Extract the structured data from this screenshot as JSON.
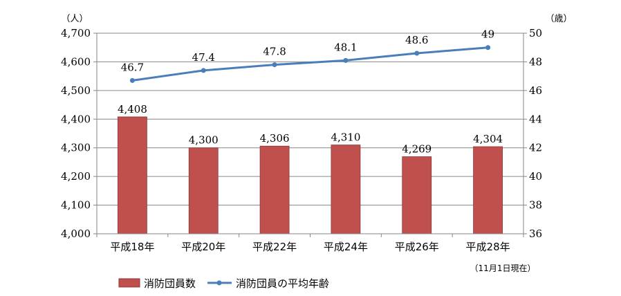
{
  "chart_data": {
    "type": "bar+line",
    "categories": [
      "平成18年",
      "平成20年",
      "平成22年",
      "平成24年",
      "平成26年",
      "平成28年"
    ],
    "series": [
      {
        "name": "消防団員数",
        "type": "bar",
        "axis": "left",
        "values": [
          4408,
          4300,
          4306,
          4310,
          4269,
          4304
        ],
        "labels": [
          "4,408",
          "4,300",
          "4,306",
          "4,310",
          "4,269",
          "4,304"
        ],
        "color": "#c0504d"
      },
      {
        "name": "消防団員の平均年齢",
        "type": "line",
        "axis": "right",
        "values": [
          46.7,
          47.4,
          47.8,
          48.1,
          48.6,
          49
        ],
        "labels": [
          "46.7",
          "47.4",
          "47.8",
          "48.1",
          "48.6",
          "49"
        ],
        "color": "#4a7ebb"
      }
    ],
    "y_left": {
      "unit": "（人）",
      "ylim": [
        4000,
        4700
      ],
      "ticks": [
        4000,
        4100,
        4200,
        4300,
        4400,
        4500,
        4600,
        4700
      ],
      "tick_labels": [
        "4,000",
        "4,100",
        "4,200",
        "4,300",
        "4,400",
        "4,500",
        "4,600",
        "4,700"
      ]
    },
    "y_right": {
      "unit": "（歳）",
      "ylim": [
        36,
        50
      ],
      "ticks": [
        36,
        38,
        40,
        42,
        44,
        46,
        48,
        50
      ],
      "tick_labels": [
        "36",
        "38",
        "40",
        "42",
        "44",
        "46",
        "48",
        "50"
      ]
    },
    "note": "（11月1日現在）",
    "grid": true,
    "legend_position": "bottom-left"
  }
}
